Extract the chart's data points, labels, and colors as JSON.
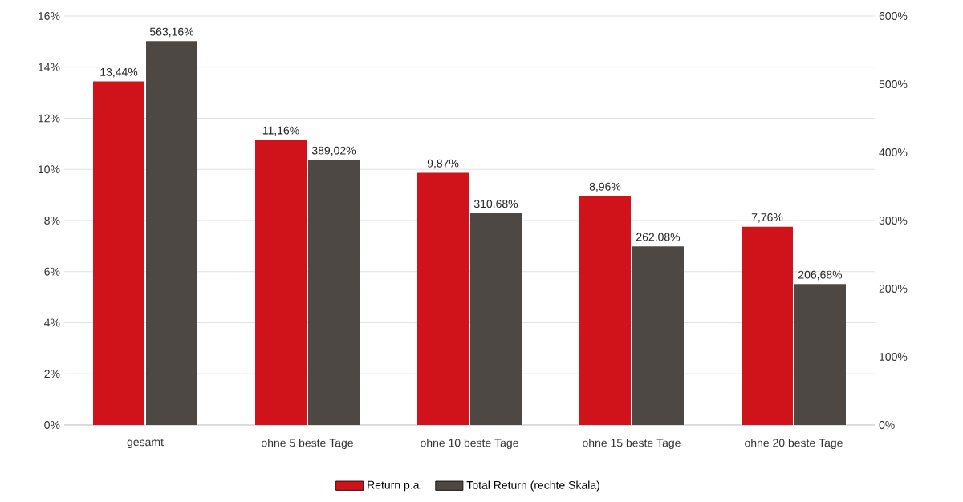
{
  "chart_data": {
    "type": "bar",
    "categories": [
      "gesamt",
      "ohne 5 beste Tage",
      "ohne 10 beste Tage",
      "ohne 15 beste Tage",
      "ohne 20 beste Tage"
    ],
    "series": [
      {
        "name": "Return p.a.",
        "color": "#d0121b",
        "axis": "y",
        "values": [
          13.44,
          11.16,
          9.87,
          8.96,
          7.76
        ],
        "value_labels": [
          "13,44%",
          "11,16%",
          "9,87%",
          "8,96%",
          "7,76%"
        ]
      },
      {
        "name": "Total Return (rechte Skala)",
        "color": "#4d4844",
        "axis": "y2",
        "values": [
          563.16,
          389.02,
          310.68,
          262.08,
          206.68
        ],
        "value_labels": [
          "563,16%",
          "389,02%",
          "310,68%",
          "262,08%",
          "206,68%"
        ]
      }
    ],
    "ylim": [
      0,
      16
    ],
    "yticks": [
      {
        "value": 0,
        "label": "0%"
      },
      {
        "value": 2,
        "label": "2%"
      },
      {
        "value": 4,
        "label": "4%"
      },
      {
        "value": 6,
        "label": "6%"
      },
      {
        "value": 8,
        "label": "8%"
      },
      {
        "value": 10,
        "label": "10%"
      },
      {
        "value": 12,
        "label": "12%"
      },
      {
        "value": 14,
        "label": "14%"
      },
      {
        "value": 16,
        "label": "16%"
      }
    ],
    "y2lim": [
      0,
      600
    ],
    "y2ticks": [
      {
        "value": 0,
        "label": "0%"
      },
      {
        "value": 100,
        "label": "100%"
      },
      {
        "value": 200,
        "label": "200%"
      },
      {
        "value": 300,
        "label": "300%"
      },
      {
        "value": 400,
        "label": "400%"
      },
      {
        "value": 500,
        "label": "500%"
      },
      {
        "value": 600,
        "label": "600%"
      }
    ],
    "grid": "y",
    "legend": "bottom"
  }
}
